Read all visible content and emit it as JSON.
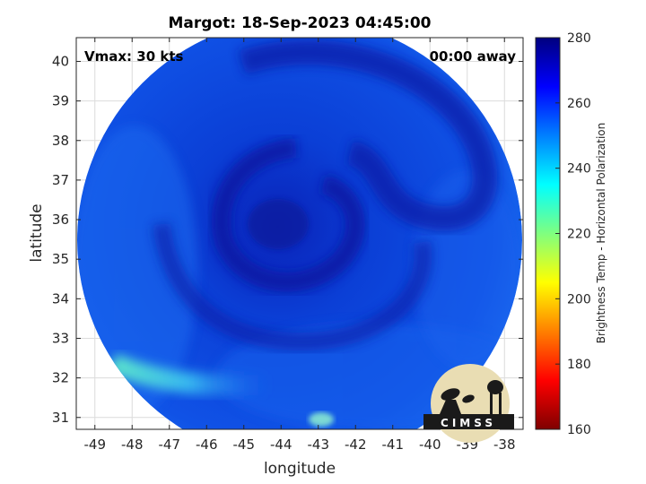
{
  "title": "Margot: 18-Sep-2023 04:45:00",
  "annotations": {
    "vmax": "Vmax: 30 kts",
    "away": "00:00 away"
  },
  "logo": {
    "text": "CIMSS"
  },
  "chart_data": {
    "type": "heatmap",
    "xlabel": "longitude",
    "ylabel": "latitude",
    "x_ticks": [
      -49,
      -48,
      -47,
      -46,
      -45,
      -44,
      -43,
      -42,
      -41,
      -40,
      -39,
      -38
    ],
    "y_ticks": [
      31,
      32,
      33,
      34,
      35,
      36,
      37,
      38,
      39,
      40
    ],
    "xlim": [
      -49.5,
      -37.5
    ],
    "ylim": [
      30.7,
      40.6
    ],
    "grid": true,
    "swath": {
      "shape": "circular",
      "center_lon": -43.4,
      "center_lat": 35.7,
      "radius_deg": 5.6
    },
    "storm_center": {
      "lon": -44.0,
      "lat": 35.8
    },
    "colorbar": {
      "label": "Brightness Temp - Horizontal Polarization",
      "ticks": [
        160,
        180,
        200,
        220,
        240,
        260,
        280
      ],
      "range": [
        160,
        280
      ],
      "colormap": "jet"
    },
    "field_summary": {
      "typical_value": 262,
      "spiral_band_value": 272,
      "southwest_warm_band_value": 240,
      "south_edge_spot_value": 235
    }
  }
}
